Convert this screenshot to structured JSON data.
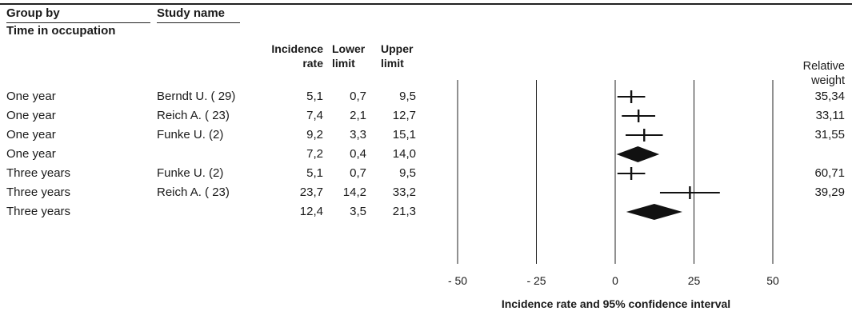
{
  "headers": {
    "group_by": "Group by",
    "study_name": "Study name",
    "subgroup_label": "Time in occupation",
    "incidence": [
      "Incidence",
      "rate"
    ],
    "lower": [
      "Lower",
      "limit"
    ],
    "upper": [
      "Upper",
      "limit"
    ],
    "weight": [
      "Relative",
      "weight"
    ]
  },
  "rows": [
    {
      "group": "One year",
      "study": "Berndt U. ( 29)",
      "rate": "5,1",
      "lower": "0,7",
      "upper": "9,5",
      "weight": "35,34"
    },
    {
      "group": "One year",
      "study": "Reich A. ( 23)",
      "rate": "7,4",
      "lower": "2,1",
      "upper": "12,7",
      "weight": "33,11"
    },
    {
      "group": "One year",
      "study": "Funke U. (2)",
      "rate": "9,2",
      "lower": "3,3",
      "upper": "15,1",
      "weight": "31,55"
    },
    {
      "group": "One year",
      "study": "",
      "rate": "7,2",
      "lower": "0,4",
      "upper": "14,0",
      "weight": ""
    },
    {
      "group": "Three years",
      "study": "Funke U. (2)",
      "rate": "5,1",
      "lower": "0,7",
      "upper": "9,5",
      "weight": "60,71"
    },
    {
      "group": "Three years",
      "study": "Reich A. ( 23)",
      "rate": "23,7",
      "lower": "14,2",
      "upper": "33,2",
      "weight": "39,29"
    },
    {
      "group": "Three years",
      "study": "",
      "rate": "12,4",
      "lower": "3,5",
      "upper": "21,3",
      "weight": ""
    }
  ],
  "chart_data": {
    "type": "forest",
    "title": "",
    "xlabel": "Incidence rate and 95% confidence interval",
    "xlim": [
      -50,
      50
    ],
    "xticks": [
      -50,
      -25,
      0,
      25,
      50
    ],
    "xtick_labels": [
      "- 50",
      "- 25",
      "0",
      "25",
      "50"
    ],
    "studies": [
      {
        "group": "One year",
        "study": "Berndt U. ( 29)",
        "estimate": 5.1,
        "lower": 0.7,
        "upper": 9.5,
        "weight": 35.34,
        "kind": "study"
      },
      {
        "group": "One year",
        "study": "Reich A. ( 23)",
        "estimate": 7.4,
        "lower": 2.1,
        "upper": 12.7,
        "weight": 33.11,
        "kind": "study"
      },
      {
        "group": "One year",
        "study": "Funke U. (2)",
        "estimate": 9.2,
        "lower": 3.3,
        "upper": 15.1,
        "weight": 31.55,
        "kind": "study"
      },
      {
        "group": "One year",
        "study": "",
        "estimate": 7.2,
        "lower": 0.4,
        "upper": 14.0,
        "weight": null,
        "kind": "summary"
      },
      {
        "group": "Three years",
        "study": "Funke U. (2)",
        "estimate": 5.1,
        "lower": 0.7,
        "upper": 9.5,
        "weight": 60.71,
        "kind": "study"
      },
      {
        "group": "Three years",
        "study": "Reich A. ( 23)",
        "estimate": 23.7,
        "lower": 14.2,
        "upper": 33.2,
        "weight": 39.29,
        "kind": "study"
      },
      {
        "group": "Three years",
        "study": "",
        "estimate": 12.4,
        "lower": 3.5,
        "upper": 21.3,
        "weight": null,
        "kind": "summary"
      }
    ],
    "colors": {
      "marks": "#111111",
      "gridlines": "#222222"
    }
  }
}
